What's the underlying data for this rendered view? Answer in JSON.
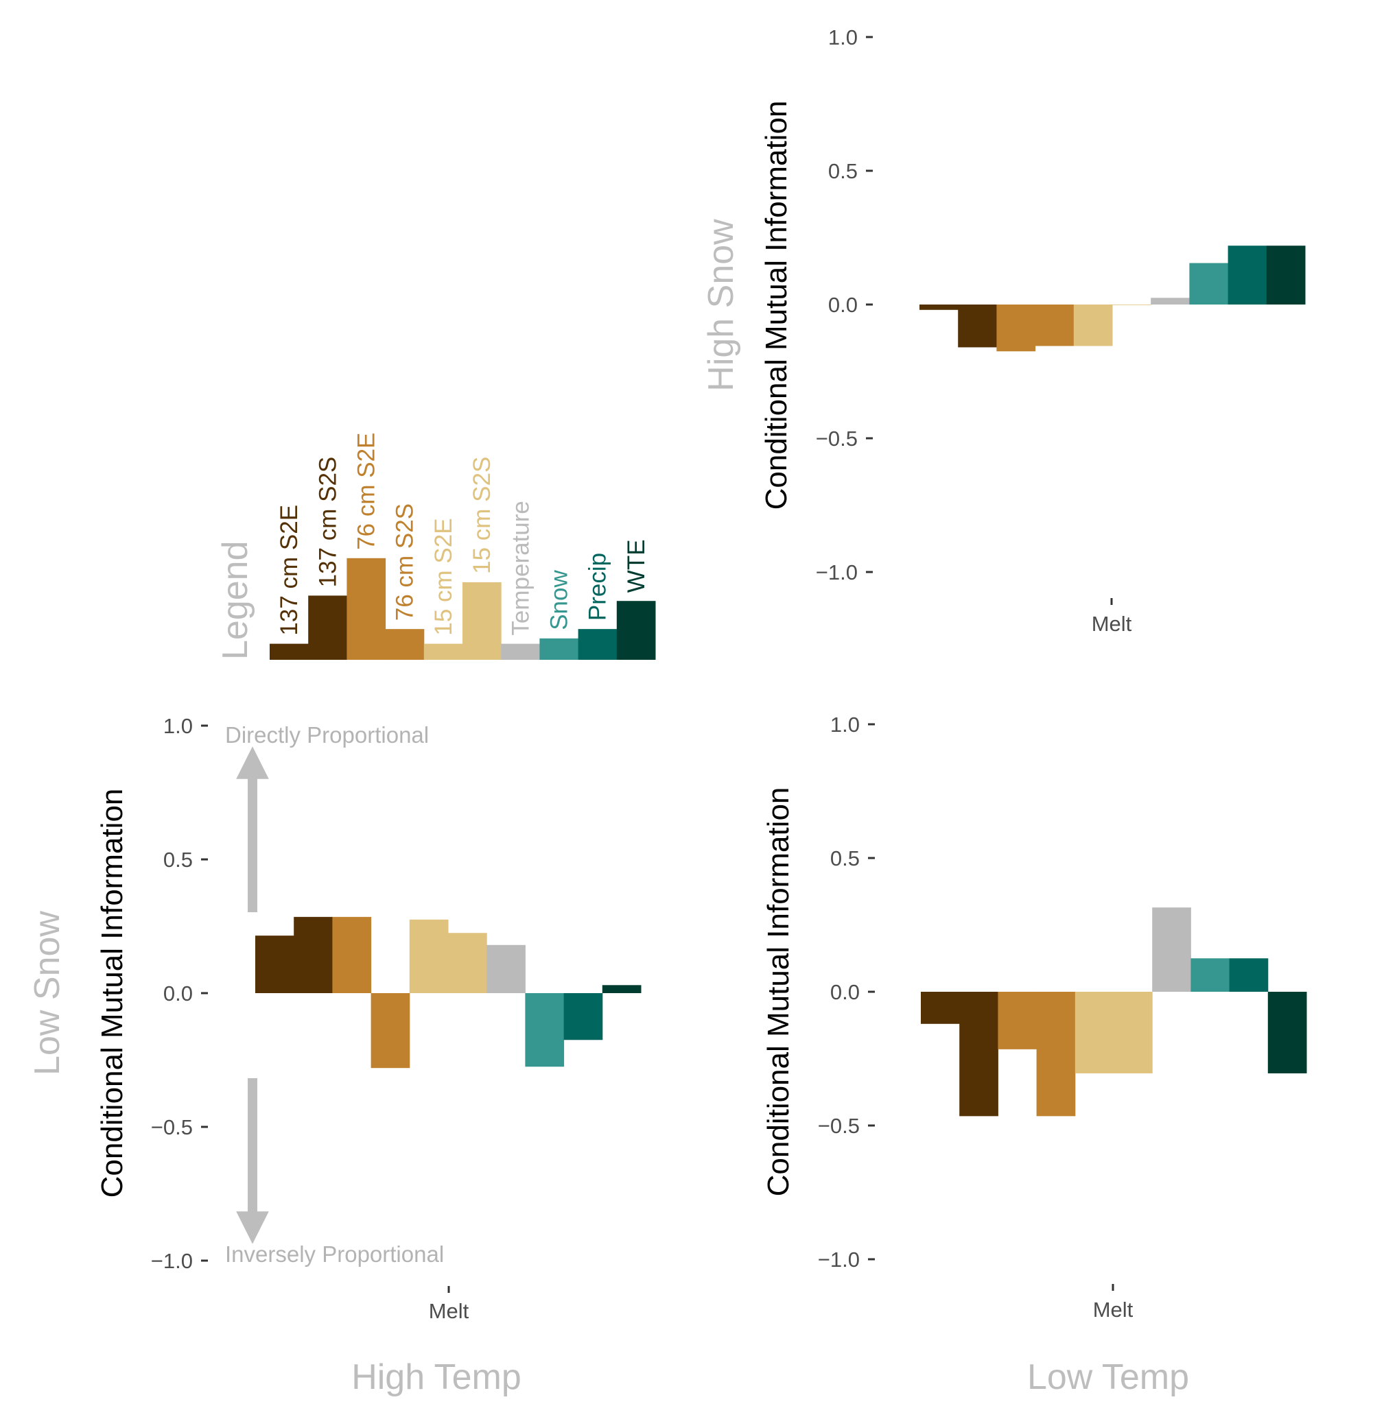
{
  "chart_data": {
    "type": "bar",
    "y_axis_label": "Conditional Mutual Information",
    "ylim": [
      -1.0,
      1.0
    ],
    "y_ticks": [
      "1.0",
      "0.5",
      "0.0",
      "−0.5",
      "−1.0"
    ],
    "x_category": "Melt",
    "series_order": [
      "137 cm S2E",
      "137 cm S2S",
      "76 cm S2E",
      "76 cm S2S",
      "15 cm S2E",
      "15 cm S2S",
      "Temperature",
      "Snow",
      "Precip",
      "WTE"
    ],
    "colors": [
      "#543005",
      "#543005",
      "#bf812d",
      "#bf812d",
      "#dfc27d",
      "#dfc27d",
      "#bababa",
      "#35978f",
      "#01665e",
      "#003c30"
    ],
    "legend": {
      "title": "Legend",
      "values": [
        0.06,
        0.24,
        0.38,
        0.115,
        0.06,
        0.29,
        0.06,
        0.08,
        0.115,
        0.22
      ]
    },
    "panels": [
      {
        "id": "high-snow-low-temp",
        "row_label": "High Snow",
        "values": [
          -0.02,
          -0.16,
          -0.175,
          -0.155,
          -0.155,
          0.0,
          0.025,
          0.155,
          0.22,
          0.22
        ]
      },
      {
        "id": "low-snow-high-temp",
        "row_label": "Low Snow",
        "col_label": "High Temp",
        "values": [
          0.215,
          0.285,
          0.285,
          -0.28,
          0.275,
          0.225,
          0.18,
          -0.275,
          -0.175,
          0.03
        ],
        "annotations": {
          "top": "Directly Proportional",
          "bottom": "Inversely Proportional"
        }
      },
      {
        "id": "low-snow-low-temp",
        "col_label": "Low Temp",
        "values": [
          -0.12,
          -0.465,
          -0.215,
          -0.465,
          -0.305,
          -0.305,
          0.315,
          0.125,
          0.125,
          -0.305
        ]
      }
    ]
  }
}
